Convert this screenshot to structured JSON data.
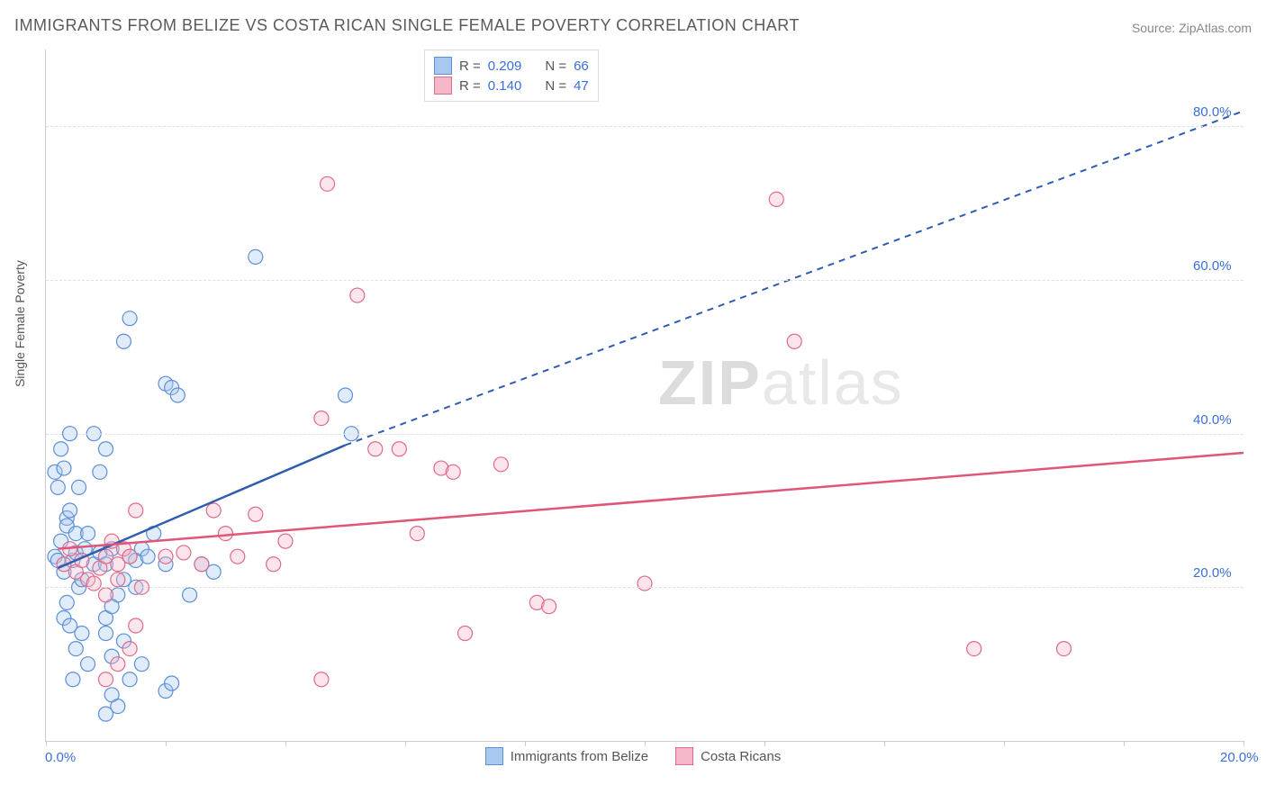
{
  "title": "IMMIGRANTS FROM BELIZE VS COSTA RICAN SINGLE FEMALE POVERTY CORRELATION CHART",
  "source": "Source: ZipAtlas.com",
  "y_axis_label": "Single Female Poverty",
  "watermark": {
    "bold": "ZIP",
    "light": "atlas"
  },
  "chart": {
    "type": "scatter",
    "background_color": "#ffffff",
    "grid_color": "#e0e0e0",
    "axis_color": "#cccccc",
    "xlim": [
      0,
      20
    ],
    "ylim": [
      0,
      90
    ],
    "x_ticks": [
      0,
      2,
      4,
      6,
      8,
      10,
      12,
      14,
      16,
      18,
      20
    ],
    "x_tick_labels": {
      "0": "0.0%",
      "20": "20.0%"
    },
    "y_ticks": [
      20,
      40,
      60,
      80
    ],
    "y_tick_labels": {
      "20": "20.0%",
      "40": "40.0%",
      "60": "60.0%",
      "80": "80.0%"
    },
    "point_radius": 8,
    "series": [
      {
        "name": "Immigrants from Belize",
        "color_fill": "#a8c8f0",
        "color_stroke": "#5b8fd6",
        "R": "0.209",
        "N": "66",
        "trend": {
          "solid": [
            [
              0.2,
              22.5
            ],
            [
              5.0,
              38.5
            ]
          ],
          "dashed": [
            [
              5.0,
              38.5
            ],
            [
              20.0,
              82.0
            ]
          ],
          "stroke": "#2e5db0",
          "width": 2.5
        },
        "points": [
          [
            0.15,
            24
          ],
          [
            0.2,
            23.5
          ],
          [
            0.25,
            26
          ],
          [
            0.3,
            22
          ],
          [
            0.35,
            29
          ],
          [
            0.2,
            33
          ],
          [
            0.15,
            35
          ],
          [
            0.3,
            35.5
          ],
          [
            0.25,
            38
          ],
          [
            0.4,
            40
          ],
          [
            0.35,
            28
          ],
          [
            0.45,
            23.5
          ],
          [
            0.5,
            24.5
          ],
          [
            0.55,
            20
          ],
          [
            0.6,
            21
          ],
          [
            0.5,
            27
          ],
          [
            0.4,
            30
          ],
          [
            0.3,
            16
          ],
          [
            0.35,
            18
          ],
          [
            0.4,
            15
          ],
          [
            0.5,
            12
          ],
          [
            0.6,
            14
          ],
          [
            0.7,
            10
          ],
          [
            0.45,
            8
          ],
          [
            0.55,
            33
          ],
          [
            0.65,
            25
          ],
          [
            0.7,
            27
          ],
          [
            0.8,
            23
          ],
          [
            0.9,
            24.5
          ],
          [
            1.0,
            23
          ],
          [
            1.1,
            25
          ],
          [
            1.2,
            19
          ],
          [
            1.0,
            14
          ],
          [
            1.1,
            11
          ],
          [
            1.3,
            21
          ],
          [
            1.4,
            24
          ],
          [
            1.5,
            23.5
          ],
          [
            1.6,
            25
          ],
          [
            1.3,
            52
          ],
          [
            1.4,
            55
          ],
          [
            0.9,
            35
          ],
          [
            1.0,
            38
          ],
          [
            0.8,
            40
          ],
          [
            1.0,
            16
          ],
          [
            1.1,
            17.5
          ],
          [
            1.3,
            13
          ],
          [
            1.5,
            20
          ],
          [
            1.7,
            24
          ],
          [
            1.8,
            27
          ],
          [
            2.0,
            23
          ],
          [
            2.0,
            46.5
          ],
          [
            2.1,
            46
          ],
          [
            2.2,
            45
          ],
          [
            2.4,
            19
          ],
          [
            2.6,
            23
          ],
          [
            2.0,
            6.5
          ],
          [
            2.1,
            7.5
          ],
          [
            1.1,
            6
          ],
          [
            1.2,
            4.5
          ],
          [
            1.4,
            8
          ],
          [
            1.6,
            10
          ],
          [
            3.5,
            63
          ],
          [
            2.8,
            22
          ],
          [
            5.0,
            45
          ],
          [
            5.1,
            40
          ],
          [
            1.0,
            3.5
          ]
        ]
      },
      {
        "name": "Costa Ricans",
        "color_fill": "#f5b8c8",
        "color_stroke": "#e06a8a",
        "R": "0.140",
        "N": "47",
        "trend": {
          "solid": [
            [
              0.2,
              25.0
            ],
            [
              20.0,
              37.5
            ]
          ],
          "dashed": null,
          "stroke": "#e05578",
          "width": 2.5
        },
        "points": [
          [
            0.3,
            23
          ],
          [
            0.4,
            25
          ],
          [
            0.5,
            22
          ],
          [
            0.6,
            23.5
          ],
          [
            0.7,
            21
          ],
          [
            0.8,
            20.5
          ],
          [
            0.9,
            22.5
          ],
          [
            1.0,
            24
          ],
          [
            1.1,
            26
          ],
          [
            1.2,
            23
          ],
          [
            1.3,
            25
          ],
          [
            1.4,
            24
          ],
          [
            1.5,
            30
          ],
          [
            1.6,
            20
          ],
          [
            1.0,
            19
          ],
          [
            1.2,
            21
          ],
          [
            1.4,
            12
          ],
          [
            1.5,
            15
          ],
          [
            1.0,
            8
          ],
          [
            1.2,
            10
          ],
          [
            2.0,
            24
          ],
          [
            2.3,
            24.5
          ],
          [
            2.6,
            23
          ],
          [
            2.8,
            30
          ],
          [
            3.0,
            27
          ],
          [
            3.2,
            24
          ],
          [
            3.5,
            29.5
          ],
          [
            3.8,
            23
          ],
          [
            4.0,
            26
          ],
          [
            4.6,
            42
          ],
          [
            4.6,
            8
          ],
          [
            5.5,
            38
          ],
          [
            5.2,
            58
          ],
          [
            4.7,
            72.5
          ],
          [
            5.9,
            38
          ],
          [
            6.2,
            27
          ],
          [
            6.6,
            35.5
          ],
          [
            6.8,
            35
          ],
          [
            7.0,
            14
          ],
          [
            7.6,
            36
          ],
          [
            8.2,
            18
          ],
          [
            8.4,
            17.5
          ],
          [
            10.0,
            20.5
          ],
          [
            12.2,
            70.5
          ],
          [
            12.5,
            52
          ],
          [
            15.5,
            12
          ],
          [
            17.0,
            12
          ]
        ]
      }
    ]
  },
  "legend_top": {
    "r_label": "R =",
    "n_label": "N ="
  },
  "colors": {
    "tick_label": "#3a6fd8",
    "title": "#5a5a5a",
    "source": "#888888"
  }
}
